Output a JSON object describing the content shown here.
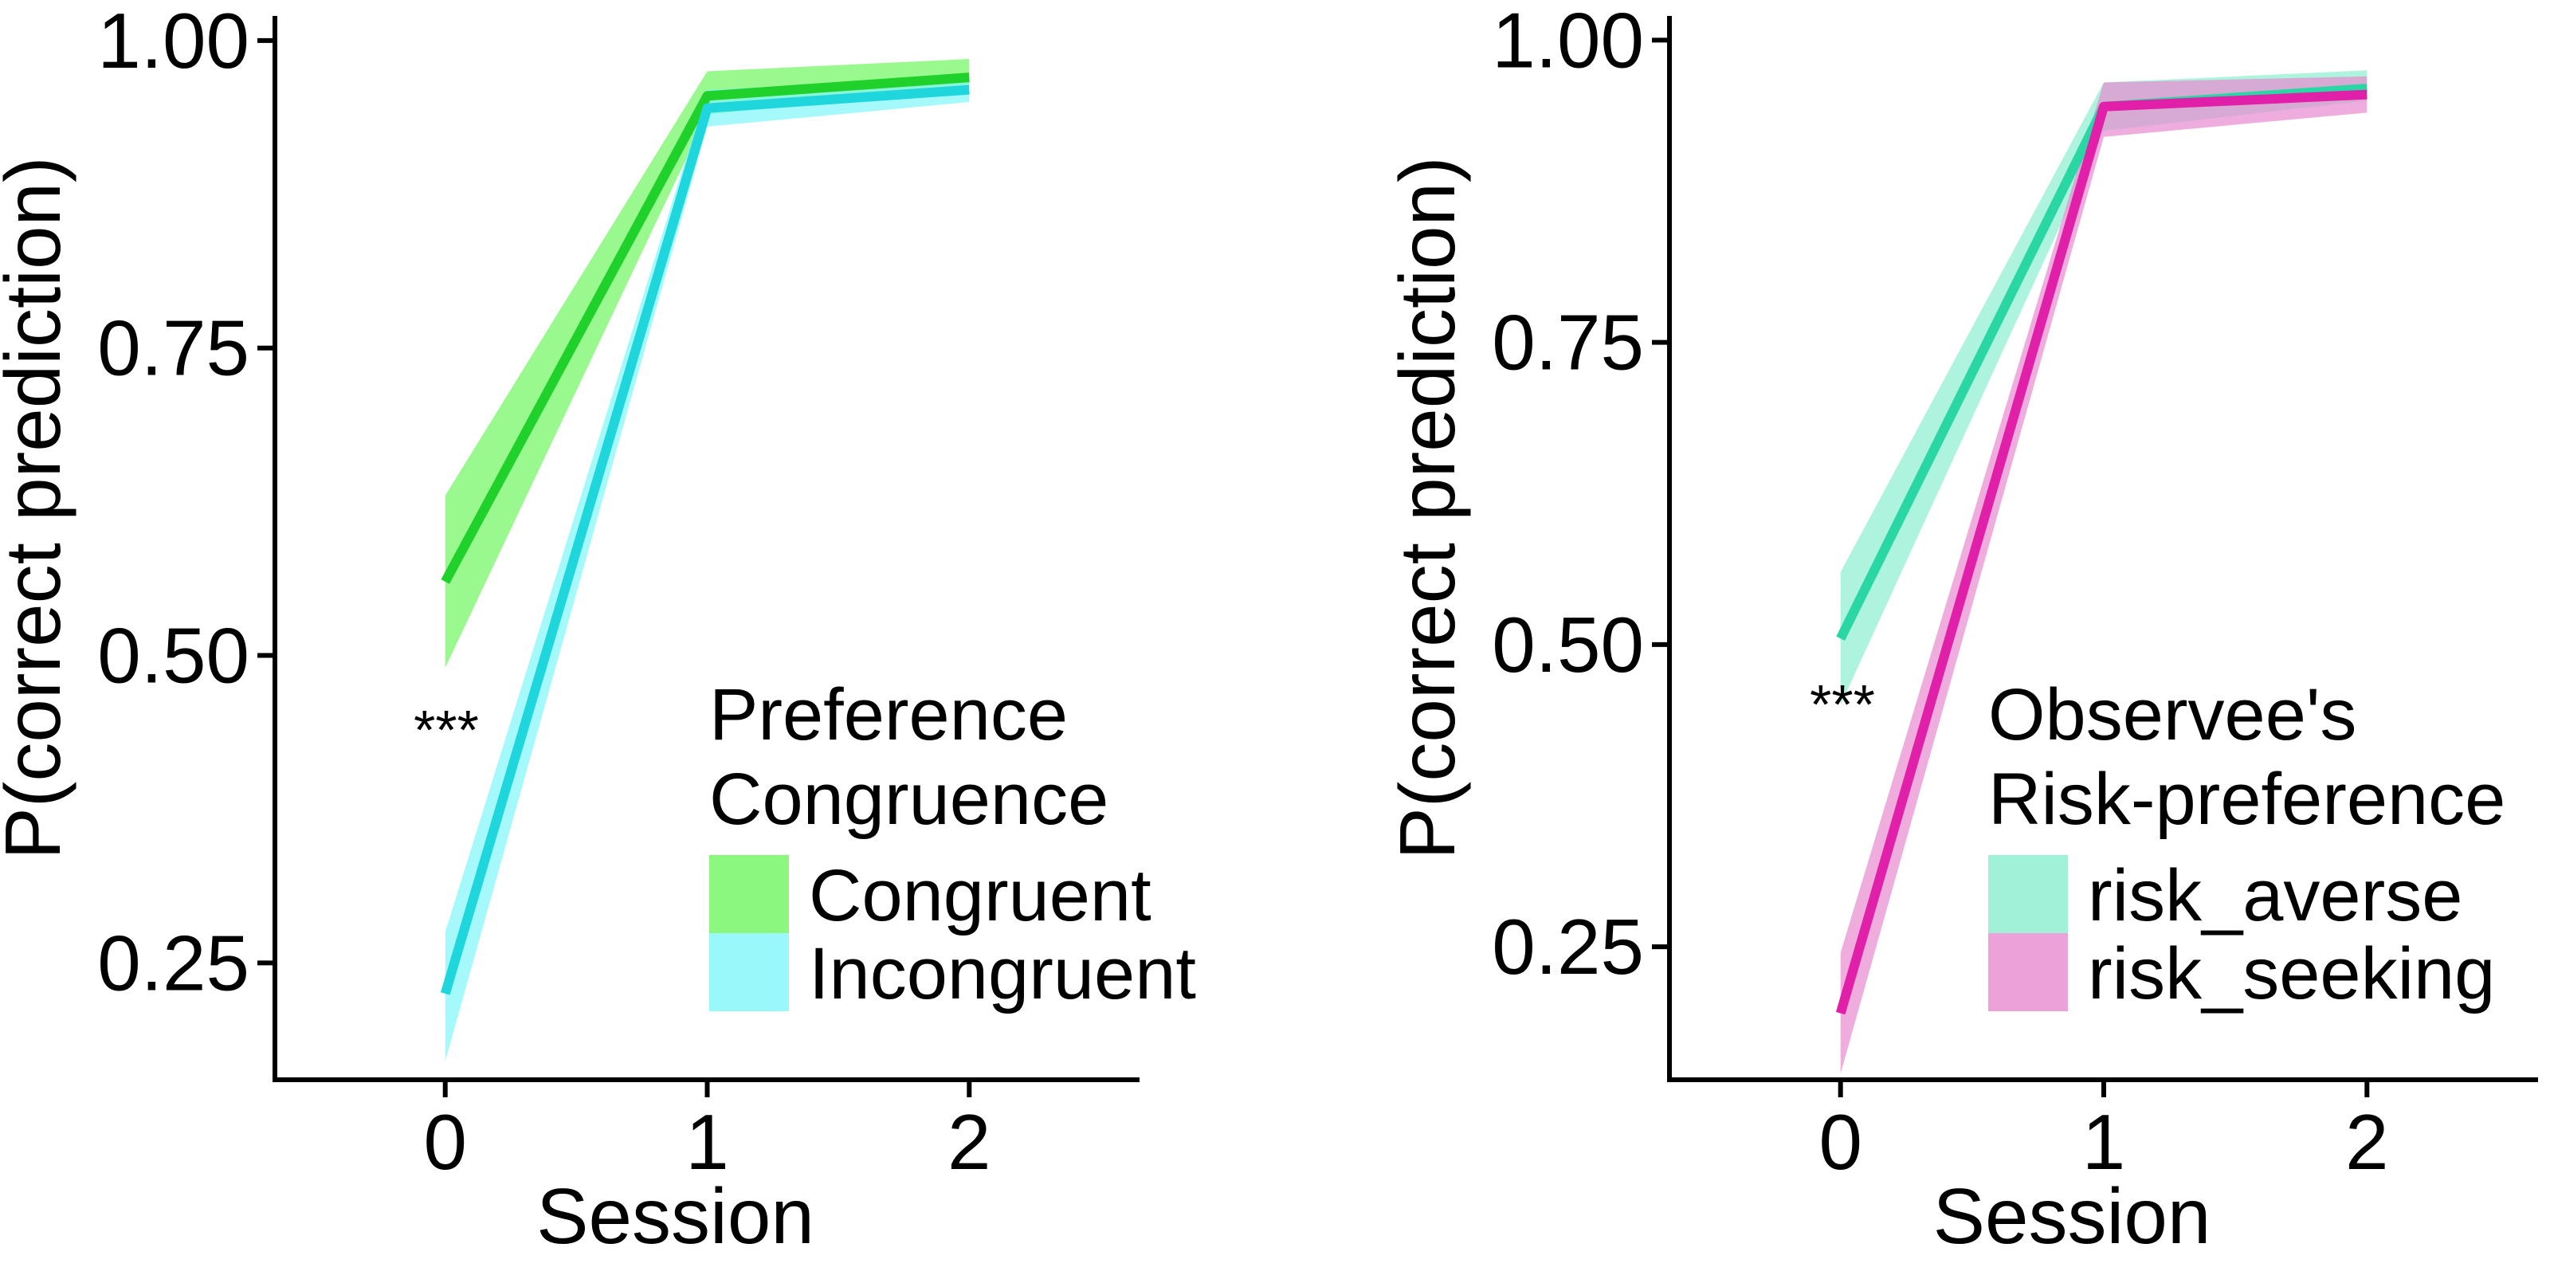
{
  "chart_data": [
    {
      "type": "line",
      "xlabel": "Session",
      "ylabel": "P(correct prediction)",
      "x": [
        0,
        1,
        2
      ],
      "xticks": [
        "0",
        "1",
        "2"
      ],
      "yticks": [
        "0.25",
        "0.50",
        "0.75",
        "1.00"
      ],
      "xlim": [
        -0.65,
        2.65
      ],
      "ylim": [
        0.155,
        1.02
      ],
      "legend_title": [
        "Preference",
        "Congruence"
      ],
      "annotation": "***",
      "series": [
        {
          "name": "Congruent",
          "color": "#1fd12a",
          "fill": "#6ef55e",
          "values": [
            0.56,
            0.955,
            0.97
          ],
          "lower": [
            0.49,
            0.94,
            0.96
          ],
          "upper": [
            0.63,
            0.975,
            0.985
          ]
        },
        {
          "name": "Incongruent",
          "color": "#1fd6dc",
          "fill": "#7ff6f8",
          "values": [
            0.225,
            0.945,
            0.96
          ],
          "lower": [
            0.17,
            0.93,
            0.95
          ],
          "upper": [
            0.275,
            0.96,
            0.97
          ]
        }
      ]
    },
    {
      "type": "line",
      "xlabel": "Session",
      "ylabel": "P(correct prediction)",
      "x": [
        0,
        1,
        2
      ],
      "xticks": [
        "0",
        "1",
        "2"
      ],
      "yticks": [
        "0.25",
        "0.50",
        "0.75",
        "1.00"
      ],
      "xlim": [
        -0.65,
        2.65
      ],
      "ylim": [
        0.14,
        1.02
      ],
      "legend_title": [
        "Observee's",
        "Risk-preference"
      ],
      "annotation": "***",
      "series": [
        {
          "name": "risk_averse",
          "color": "#2ad7a4",
          "fill": "#8aeed0",
          "values": [
            0.505,
            0.945,
            0.96
          ],
          "lower": [
            0.45,
            0.925,
            0.95
          ],
          "upper": [
            0.56,
            0.965,
            0.975
          ]
        },
        {
          "name": "risk_seeking",
          "color": "#e020a8",
          "fill": "#e88ad0",
          "values": [
            0.195,
            0.945,
            0.955
          ],
          "lower": [
            0.145,
            0.92,
            0.94
          ],
          "upper": [
            0.245,
            0.965,
            0.97
          ]
        }
      ]
    }
  ]
}
